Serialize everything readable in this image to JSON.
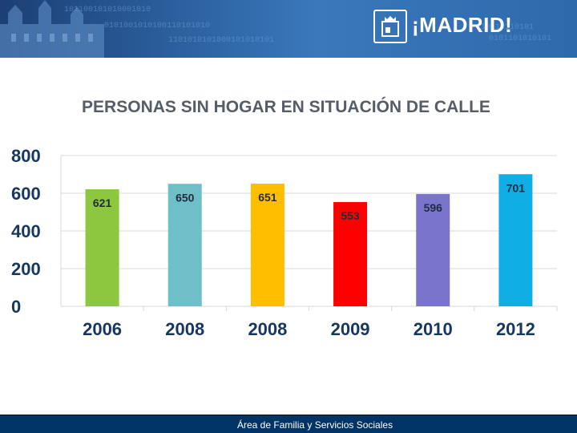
{
  "header": {
    "brand_text": "¡MADRID!",
    "colors": {
      "dark": "#1c3f74",
      "light": "#3a78bb"
    }
  },
  "chart_data": {
    "type": "bar",
    "title": "PERSONAS SIN HOGAR EN SITUACIÓN DE CALLE",
    "categories": [
      "2006",
      "2008",
      "2008",
      "2009",
      "2010",
      "2012"
    ],
    "values": [
      621,
      650,
      651,
      553,
      596,
      701
    ],
    "value_labels": [
      "621",
      "650",
      "651",
      "553",
      "596",
      "701"
    ],
    "colors": [
      "#8dc63f",
      "#6fbfc8",
      "#ffbe00",
      "#ff0000",
      "#7a74cd",
      "#0fafe6"
    ],
    "yticks": [
      "0",
      "200",
      "400",
      "600",
      "800"
    ],
    "ylim": [
      0,
      800
    ],
    "grid": true,
    "xlabel": "",
    "ylabel": ""
  },
  "footer": {
    "label": "Área de Familia y Servicios Sociales",
    "color": "#003366"
  }
}
